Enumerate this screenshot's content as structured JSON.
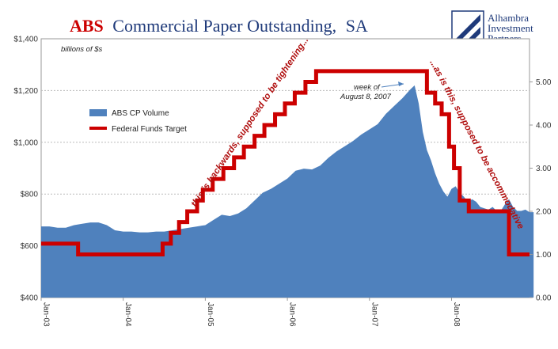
{
  "chart_data": {
    "type": "area",
    "title_part1": "ABS",
    "title_part2": "Commercial Paper Outstanding,",
    "title_part3": "SA",
    "unit_label": "billions of $s",
    "x_ticks": [
      "Jan-03",
      "Jan-04",
      "Jan-05",
      "Jan-06",
      "Jan-07",
      "Jan-08"
    ],
    "y_left": {
      "min": 400,
      "max": 1400,
      "ticks": [
        "$400",
        "$600",
        "$800",
        "$1,000",
        "$1,200",
        "$1,400"
      ]
    },
    "y_right": {
      "min": 0,
      "max": 6,
      "ticks": [
        "0.00",
        "1.00",
        "2.00",
        "3.00",
        "4.00",
        "5.00"
      ]
    },
    "grid": true,
    "colors": {
      "area": "#4f81bd",
      "line": "#cc0000",
      "title_red": "#cc0000",
      "title_blue": "#1f3a7a"
    },
    "series": [
      {
        "name": "ABS CP Volume",
        "axis": "left",
        "x": [
          2003.0,
          2003.1,
          2003.2,
          2003.3,
          2003.4,
          2003.5,
          2003.6,
          2003.7,
          2003.8,
          2003.9,
          2004.0,
          2004.1,
          2004.2,
          2004.3,
          2004.4,
          2004.5,
          2004.6,
          2004.7,
          2004.8,
          2004.9,
          2005.0,
          2005.1,
          2005.2,
          2005.3,
          2005.4,
          2005.5,
          2005.6,
          2005.7,
          2005.8,
          2005.9,
          2006.0,
          2006.1,
          2006.2,
          2006.3,
          2006.4,
          2006.5,
          2006.6,
          2006.7,
          2006.8,
          2006.9,
          2007.0,
          2007.1,
          2007.2,
          2007.3,
          2007.4,
          2007.5,
          2007.55,
          2007.6,
          2007.65,
          2007.7,
          2007.75,
          2007.8,
          2007.85,
          2007.9,
          2007.95,
          2008.0,
          2008.05,
          2008.1,
          2008.15,
          2008.2,
          2008.25,
          2008.3,
          2008.35,
          2008.4,
          2008.45,
          2008.5,
          2008.55,
          2008.6,
          2008.65,
          2008.7,
          2008.75,
          2008.8,
          2008.85,
          2008.9,
          2008.95,
          2009.0
        ],
        "values": [
          675,
          675,
          670,
          670,
          680,
          685,
          690,
          690,
          680,
          660,
          655,
          655,
          652,
          652,
          655,
          655,
          660,
          665,
          670,
          675,
          680,
          700,
          720,
          715,
          725,
          745,
          775,
          805,
          820,
          840,
          860,
          890,
          898,
          895,
          910,
          940,
          965,
          985,
          1005,
          1030,
          1050,
          1070,
          1110,
          1140,
          1170,
          1205,
          1220,
          1150,
          1040,
          970,
          930,
          880,
          840,
          810,
          790,
          820,
          830,
          805,
          790,
          770,
          780,
          770,
          750,
          745,
          740,
          750,
          735,
          735,
          760,
          780,
          750,
          735,
          735,
          740,
          730,
          730
        ]
      },
      {
        "name": "Federal Funds Target",
        "axis": "right",
        "x": [
          2003.0,
          2003.45,
          2003.45,
          2004.48,
          2004.48,
          2004.58,
          2004.58,
          2004.68,
          2004.68,
          2004.78,
          2004.78,
          2004.9,
          2004.9,
          2004.97,
          2004.97,
          2005.09,
          2005.09,
          2005.22,
          2005.22,
          2005.35,
          2005.35,
          2005.47,
          2005.47,
          2005.6,
          2005.6,
          2005.72,
          2005.72,
          2005.85,
          2005.85,
          2005.97,
          2005.97,
          2006.09,
          2006.09,
          2006.22,
          2006.22,
          2006.35,
          2006.35,
          2006.47,
          2006.47,
          2006.72,
          2006.72,
          2007.7,
          2007.7,
          2007.8,
          2007.8,
          2007.88,
          2007.88,
          2007.97,
          2007.97,
          2008.03,
          2008.03,
          2008.1,
          2008.1,
          2008.21,
          2008.21,
          2008.3,
          2008.3,
          2008.7,
          2008.7,
          2008.8,
          2008.8,
          2008.95
        ],
        "values": [
          1.25,
          1.25,
          1.0,
          1.0,
          1.25,
          1.25,
          1.5,
          1.5,
          1.75,
          1.75,
          2.0,
          2.0,
          2.25,
          2.25,
          2.5,
          2.5,
          2.75,
          2.75,
          3.0,
          3.0,
          3.25,
          3.25,
          3.5,
          3.5,
          3.75,
          3.75,
          4.0,
          4.0,
          4.25,
          4.25,
          4.5,
          4.5,
          4.75,
          4.75,
          5.0,
          5.0,
          5.25,
          5.25,
          5.25,
          5.25,
          5.25,
          5.25,
          4.75,
          4.75,
          4.5,
          4.5,
          4.25,
          4.25,
          3.5,
          3.5,
          3.0,
          3.0,
          2.25,
          2.25,
          2.0,
          2.0,
          2.0,
          2.0,
          1.0,
          1.0,
          1.0,
          1.0
        ]
      }
    ],
    "annotations": {
      "left_arrow_text": "this is backwards, supposed to be tightening...",
      "right_arrow_text": "...as is this, supposed to be accommodative",
      "peak_line1": "week of",
      "peak_line2": "August 8, 2007"
    },
    "legend_position": "top-left"
  },
  "logo": {
    "line1": "Alhambra",
    "line2": "Investment",
    "line3": "Partners"
  }
}
